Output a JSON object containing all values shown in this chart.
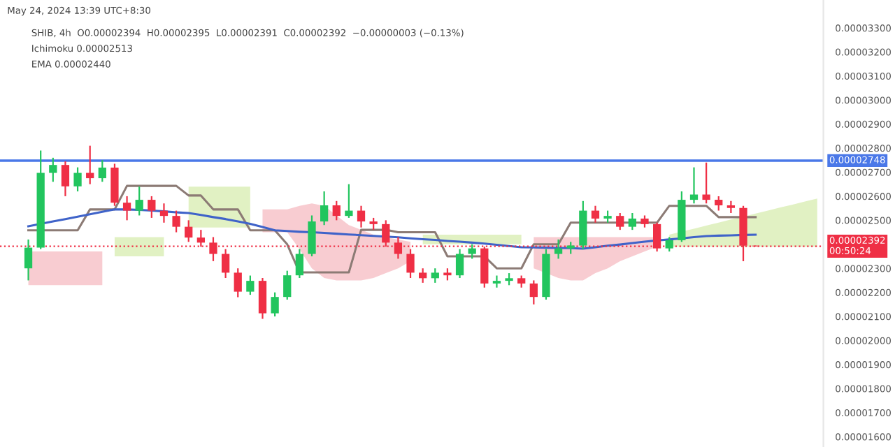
{
  "chart_data": {
    "type": "candlestick",
    "annotations": [
      "May 24, 2024 13:39 UTC+8:30",
      "SHIB, 4h  O0.00002394  H0.00002395  L0.00002391  C0.00002392  −0.00000003 (−0.13%)",
      "Ichimoku 0.00002513",
      "EMA 0.00002440"
    ],
    "categories": [
      null,
      null,
      null,
      null,
      null,
      null,
      null,
      null,
      null,
      null,
      null,
      null,
      null,
      null,
      null,
      null,
      null,
      null,
      null,
      null,
      null,
      null,
      null,
      null,
      null,
      null,
      null,
      null,
      null,
      null,
      null,
      null,
      null,
      null,
      null,
      null,
      null,
      null,
      null,
      null,
      null,
      null,
      null,
      null,
      null,
      null,
      null,
      null,
      null,
      null,
      null,
      null,
      null,
      null,
      null,
      null,
      null,
      null,
      null,
      null,
      null,
      null,
      null,
      null,
      null
    ],
    "colors": [
      "#22c55e",
      "#22c55e",
      "#22c55e",
      "#ef2f45",
      "#22c55e",
      "#ef2f45",
      "#22c55e",
      "#ef2f45",
      "#ef2f45",
      "#22c55e",
      "#ef2f45",
      "#ef2f45",
      "#ef2f45",
      "#ef2f45",
      "#ef2f45",
      "#ef2f45",
      "#ef2f45",
      "#ef2f45",
      "#22c55e",
      "#ef2f45",
      "#22c55e",
      "#22c55e",
      "#22c55e",
      "#22c55e",
      "#22c55e",
      "#ef2f45",
      "#22c55e",
      "#ef2f45",
      "#ef2f45",
      "#ef2f45",
      "#ef2f45",
      "#ef2f45",
      "#ef2f45",
      "#22c55e",
      "#ef2f45",
      "#22c55e",
      "#22c55e",
      "#ef2f45",
      "#22c55e",
      "#22c55e",
      "#ef2f45",
      "#ef2f45",
      "#22c55e",
      "#22c55e",
      "#22c55e",
      "#22c55e",
      "#ef2f45",
      "#22c55e",
      "#ef2f45",
      "#22c55e",
      "#ef2f45",
      "#ef2f45",
      "#22c55e",
      "#22c55e",
      "#22c55e",
      "#ef2f45",
      "#ef2f45",
      "#ef2f45",
      "#ef2f45",
      "#ef2f45",
      null,
      null,
      null,
      null,
      null
    ],
    "ohlc": [
      [
        2.3e-05,
        2.42e-05,
        2.25e-05,
        2.386e-05
      ],
      [
        2.386e-05,
        2.79e-05,
        2.38e-05,
        2.697e-05
      ],
      [
        2.697e-05,
        2.76e-05,
        2.66e-05,
        2.73e-05
      ],
      [
        2.73e-05,
        2.745e-05,
        2.6e-05,
        2.641e-05
      ],
      [
        2.641e-05,
        2.72e-05,
        2.62e-05,
        2.697e-05
      ],
      [
        2.697e-05,
        2.81e-05,
        2.65e-05,
        2.675e-05
      ],
      [
        2.675e-05,
        2.75e-05,
        2.66e-05,
        2.719e-05
      ],
      [
        2.719e-05,
        2.735e-05,
        2.56e-05,
        2.573e-05
      ],
      [
        2.573e-05,
        2.6e-05,
        2.5e-05,
        2.54e-05
      ],
      [
        2.54e-05,
        2.64e-05,
        2.52e-05,
        2.585e-05
      ],
      [
        2.585e-05,
        2.6e-05,
        2.51e-05,
        2.54e-05
      ],
      [
        2.54e-05,
        2.57e-05,
        2.49e-05,
        2.518e-05
      ],
      [
        2.518e-05,
        2.54e-05,
        2.45e-05,
        2.473e-05
      ],
      [
        2.473e-05,
        2.5e-05,
        2.41e-05,
        2.428e-05
      ],
      [
        2.428e-05,
        2.46e-05,
        2.39e-05,
        2.407e-05
      ],
      [
        2.407e-05,
        2.43e-05,
        2.33e-05,
        2.36e-05
      ],
      [
        2.36e-05,
        2.38e-05,
        2.26e-05,
        2.282e-05
      ],
      [
        2.282e-05,
        2.3e-05,
        2.18e-05,
        2.203e-05
      ],
      [
        2.203e-05,
        2.27e-05,
        2.19e-05,
        2.248e-05
      ],
      [
        2.248e-05,
        2.26e-05,
        2.09e-05,
        2.113e-05
      ],
      [
        2.113e-05,
        2.2e-05,
        2.1e-05,
        2.181e-05
      ],
      [
        2.181e-05,
        2.29e-05,
        2.17e-05,
        2.271e-05
      ],
      [
        2.271e-05,
        2.38e-05,
        2.26e-05,
        2.36e-05
      ],
      [
        2.36e-05,
        2.52e-05,
        2.35e-05,
        2.495e-05
      ],
      [
        2.495e-05,
        2.62e-05,
        2.48e-05,
        2.562e-05
      ],
      [
        2.562e-05,
        2.58e-05,
        2.5e-05,
        2.518e-05
      ],
      [
        2.518e-05,
        2.65e-05,
        2.51e-05,
        2.54e-05
      ],
      [
        2.54e-05,
        2.56e-05,
        2.47e-05,
        2.495e-05
      ],
      [
        2.495e-05,
        2.51e-05,
        2.46e-05,
        2.484e-05
      ],
      [
        2.484e-05,
        2.5e-05,
        2.39e-05,
        2.407e-05
      ],
      [
        2.407e-05,
        2.43e-05,
        2.34e-05,
        2.36e-05
      ],
      [
        2.36e-05,
        2.38e-05,
        2.26e-05,
        2.282e-05
      ],
      [
        2.282e-05,
        2.3e-05,
        2.24e-05,
        2.259e-05
      ],
      [
        2.259e-05,
        2.3e-05,
        2.24e-05,
        2.282e-05
      ],
      [
        2.282e-05,
        2.3e-05,
        2.25e-05,
        2.271e-05
      ],
      [
        2.271e-05,
        2.38e-05,
        2.26e-05,
        2.36e-05
      ],
      [
        2.36e-05,
        2.4e-05,
        2.34e-05,
        2.383e-05
      ],
      [
        2.383e-05,
        2.39e-05,
        2.22e-05,
        2.237e-05
      ],
      [
        2.237e-05,
        2.27e-05,
        2.22e-05,
        2.248e-05
      ],
      [
        2.248e-05,
        2.28e-05,
        2.23e-05,
        2.259e-05
      ],
      [
        2.259e-05,
        2.27e-05,
        2.22e-05,
        2.237e-05
      ],
      [
        2.237e-05,
        2.25e-05,
        2.15e-05,
        2.181e-05
      ],
      [
        2.181e-05,
        2.38e-05,
        2.17e-05,
        2.36e-05
      ],
      [
        2.36e-05,
        2.42e-05,
        2.34e-05,
        2.383e-05
      ],
      [
        2.383e-05,
        2.41e-05,
        2.36e-05,
        2.395e-05
      ],
      [
        2.395e-05,
        2.58e-05,
        2.38e-05,
        2.54e-05
      ],
      [
        2.54e-05,
        2.56e-05,
        2.49e-05,
        2.507e-05
      ],
      [
        2.507e-05,
        2.54e-05,
        2.49e-05,
        2.518e-05
      ],
      [
        2.518e-05,
        2.53e-05,
        2.46e-05,
        2.473e-05
      ],
      [
        2.473e-05,
        2.53e-05,
        2.46e-05,
        2.507e-05
      ],
      [
        2.507e-05,
        2.52e-05,
        2.47e-05,
        2.484e-05
      ],
      [
        2.484e-05,
        2.49e-05,
        2.37e-05,
        2.383e-05
      ],
      [
        2.383e-05,
        2.43e-05,
        2.37e-05,
        2.417e-05
      ],
      [
        2.417e-05,
        2.62e-05,
        2.41e-05,
        2.585e-05
      ],
      [
        2.585e-05,
        2.72e-05,
        2.57e-05,
        2.607e-05
      ],
      [
        2.607e-05,
        2.74e-05,
        2.57e-05,
        2.585e-05
      ],
      [
        2.585e-05,
        2.6e-05,
        2.54e-05,
        2.562e-05
      ],
      [
        2.562e-05,
        2.58e-05,
        2.53e-05,
        2.551e-05
      ],
      [
        2.551e-05,
        2.56e-05,
        2.33e-05,
        2.394e-05
      ],
      [
        2.394e-05,
        2.395e-05,
        2.391e-05,
        2.392e-05
      ],
      null,
      null,
      null,
      null,
      null
    ],
    "series": [
      {
        "type": "area",
        "color": "#dcefb8",
        "values": [
          null,
          null,
          null,
          null,
          null,
          null,
          null,
          null,
          null,
          null,
          null,
          null,
          null,
          null,
          null,
          null,
          null,
          null,
          null,
          null,
          null,
          null,
          null,
          null,
          null,
          null,
          null,
          null,
          null,
          null,
          null,
          null,
          null,
          null,
          null,
          null,
          null,
          null,
          null,
          null,
          null,
          null,
          null,
          null,
          null,
          null,
          null,
          null,
          null,
          null,
          null,
          null,
          null,
          null,
          null,
          null,
          null,
          null,
          null,
          null,
          null,
          null,
          null,
          null,
          null
        ],
        "upper": [
          null,
          null,
          null,
          null,
          null,
          null,
          null,
          2.43e-05,
          2.43e-05,
          2.43e-05,
          2.43e-05,
          2.43e-05,
          null,
          2.64e-05,
          2.64e-05,
          2.64e-05,
          2.64e-05,
          2.64e-05,
          2.64e-05,
          null,
          null,
          null,
          null,
          null,
          null,
          null,
          null,
          null,
          null,
          null,
          null,
          null,
          2.44e-05,
          2.44e-05,
          2.44e-05,
          2.44e-05,
          2.44e-05,
          2.44e-05,
          2.44e-05,
          2.44e-05,
          2.44e-05,
          null,
          null,
          null,
          null,
          null,
          null,
          null,
          null,
          null,
          null,
          null,
          2.44e-05,
          2.453e-05,
          2.465e-05,
          2.478e-05,
          2.49e-05,
          2.503e-05,
          2.515e-05,
          2.528e-05,
          2.54e-05,
          2.553e-05,
          2.565e-05,
          2.578e-05,
          2.59e-05
        ],
        "lower": [
          null,
          null,
          null,
          null,
          null,
          null,
          null,
          2.35e-05,
          2.35e-05,
          2.35e-05,
          2.35e-05,
          2.35e-05,
          null,
          2.47e-05,
          2.47e-05,
          2.47e-05,
          2.47e-05,
          2.47e-05,
          2.47e-05,
          null,
          null,
          null,
          null,
          null,
          null,
          null,
          null,
          null,
          null,
          null,
          null,
          null,
          2.4e-05,
          2.4e-05,
          2.4e-05,
          2.4e-05,
          2.4e-05,
          2.4e-05,
          2.4e-05,
          2.4e-05,
          2.4e-05,
          null,
          null,
          null,
          null,
          null,
          null,
          null,
          null,
          null,
          null,
          null,
          2.39e-05,
          2.39e-05,
          2.39e-05,
          2.39e-05,
          2.39e-05,
          2.39e-05,
          2.39e-05,
          2.39e-05,
          2.39e-05,
          2.39e-05,
          2.39e-05,
          2.39e-05,
          2.39e-05
        ]
      },
      {
        "type": "area",
        "color": "#f7c3c9",
        "values": [
          null,
          null,
          null,
          null,
          null,
          null,
          null,
          null,
          null,
          null,
          null,
          null,
          null,
          null,
          null,
          null,
          null,
          null,
          null,
          null,
          null,
          null,
          null,
          null,
          null,
          null,
          null,
          null,
          null,
          null,
          null,
          null,
          null,
          null,
          null,
          null,
          null,
          null,
          null,
          null,
          null,
          null,
          null,
          null,
          null,
          null,
          null,
          null,
          null,
          null,
          null,
          null,
          null,
          null,
          null,
          null,
          null,
          null,
          null,
          null,
          null,
          null,
          null,
          null,
          null
        ],
        "upper": [
          2.37e-05,
          2.37e-05,
          2.37e-05,
          2.37e-05,
          2.37e-05,
          2.37e-05,
          2.37e-05,
          null,
          null,
          null,
          null,
          null,
          null,
          null,
          null,
          null,
          null,
          null,
          null,
          2.545e-05,
          2.545e-05,
          2.545e-05,
          2.56e-05,
          2.57e-05,
          2.56e-05,
          2.52e-05,
          2.48e-05,
          2.46e-05,
          2.44e-05,
          2.43e-05,
          2.42e-05,
          2.41e-05,
          null,
          null,
          null,
          null,
          null,
          null,
          null,
          null,
          null,
          2.43e-05,
          2.43e-05,
          2.43e-05,
          2.43e-05,
          2.43e-05,
          2.43e-05,
          2.43e-05,
          2.43e-05,
          2.43e-05,
          2.43e-05,
          2.43e-05,
          null,
          null,
          null,
          null,
          null,
          null,
          null,
          null,
          null,
          null,
          null,
          null,
          null
        ],
        "lower": [
          2.23e-05,
          2.23e-05,
          2.23e-05,
          2.23e-05,
          2.23e-05,
          2.23e-05,
          2.23e-05,
          null,
          null,
          null,
          null,
          null,
          null,
          null,
          null,
          null,
          null,
          null,
          null,
          2.45e-05,
          2.45e-05,
          2.45e-05,
          2.38e-05,
          2.3e-05,
          2.26e-05,
          2.25e-05,
          2.25e-05,
          2.25e-05,
          2.26e-05,
          2.28e-05,
          2.3e-05,
          2.33e-05,
          null,
          null,
          null,
          null,
          null,
          null,
          null,
          null,
          null,
          2.3e-05,
          2.28e-05,
          2.26e-05,
          2.25e-05,
          2.25e-05,
          2.28e-05,
          2.3e-05,
          2.33e-05,
          2.35e-05,
          2.37e-05,
          2.39e-05,
          null,
          null,
          null,
          null,
          null,
          null,
          null,
          null,
          null,
          null,
          null,
          null,
          null
        ]
      },
      {
        "type": "line",
        "color": "#8c7b75",
        "values": [
          2.458e-05,
          2.458e-05,
          2.458e-05,
          2.458e-05,
          2.458e-05,
          2.545e-05,
          2.545e-05,
          2.545e-05,
          2.643e-05,
          2.643e-05,
          2.643e-05,
          2.643e-05,
          2.643e-05,
          2.603e-05,
          2.603e-05,
          2.545e-05,
          2.545e-05,
          2.545e-05,
          2.458e-05,
          2.458e-05,
          2.458e-05,
          2.4e-05,
          2.283e-05,
          2.283e-05,
          2.283e-05,
          2.283e-05,
          2.283e-05,
          2.46e-05,
          2.46e-05,
          2.46e-05,
          2.45e-05,
          2.45e-05,
          2.45e-05,
          2.45e-05,
          2.35e-05,
          2.35e-05,
          2.35e-05,
          2.35e-05,
          2.3e-05,
          2.3e-05,
          2.3e-05,
          2.4e-05,
          2.4e-05,
          2.4e-05,
          2.49e-05,
          2.49e-05,
          2.49e-05,
          2.49e-05,
          2.49e-05,
          2.49e-05,
          2.49e-05,
          2.49e-05,
          2.56e-05,
          2.56e-05,
          2.56e-05,
          2.56e-05,
          2.513e-05,
          2.513e-05,
          2.513e-05,
          2.513e-05,
          null,
          null,
          null,
          null,
          null
        ]
      },
      {
        "type": "line",
        "color": "#3f63c9",
        "values": [
          2.475e-05,
          2.485e-05,
          2.495e-05,
          2.505e-05,
          2.515e-05,
          2.525e-05,
          2.535e-05,
          2.545e-05,
          2.545e-05,
          2.543e-05,
          2.54e-05,
          2.537e-05,
          2.533e-05,
          2.53e-05,
          2.522e-05,
          2.513e-05,
          2.505e-05,
          2.495e-05,
          2.485e-05,
          2.472e-05,
          2.458e-05,
          2.455e-05,
          2.452e-05,
          2.45e-05,
          2.447e-05,
          2.444e-05,
          2.441e-05,
          2.438e-05,
          2.435e-05,
          2.432e-05,
          2.429e-05,
          2.425e-05,
          2.421e-05,
          2.418e-05,
          2.414e-05,
          2.411e-05,
          2.407e-05,
          2.403e-05,
          2.398e-05,
          2.393e-05,
          2.388e-05,
          2.387e-05,
          2.386e-05,
          2.385e-05,
          2.384e-05,
          2.382e-05,
          2.388e-05,
          2.394e-05,
          2.399e-05,
          2.405e-05,
          2.411e-05,
          2.416e-05,
          2.42e-05,
          2.425e-05,
          2.43e-05,
          2.434e-05,
          2.436e-05,
          2.437e-05,
          2.439e-05,
          2.44e-05,
          null,
          null,
          null,
          null,
          null
        ]
      }
    ],
    "ref_lines": [
      {
        "axis": "y",
        "value": 2.748e-05,
        "label": "0.00002748",
        "color": "#4a78e8",
        "line_style": "solid"
      },
      {
        "axis": "y",
        "value": 2.392e-05,
        "label": "0.00002392\n00:50:24",
        "color": "#ef2f45",
        "line_style": "dotted"
      }
    ],
    "ylim": [
      1.557e-05,
      3.416e-05
    ],
    "yticks": [
      {
        "value": 1.6e-05,
        "label": "0.00001600"
      },
      {
        "value": 1.7e-05,
        "label": "0.00001700"
      },
      {
        "value": 1.8e-05,
        "label": "0.00001800"
      },
      {
        "value": 1.9e-05,
        "label": "0.00001900"
      },
      {
        "value": 2e-05,
        "label": "0.00002000"
      },
      {
        "value": 2.1e-05,
        "label": "0.00002100"
      },
      {
        "value": 2.2e-05,
        "label": "0.00002200"
      },
      {
        "value": 2.3e-05,
        "label": "0.00002300"
      },
      {
        "value": 2.4e-05,
        "label": null
      },
      {
        "value": 2.5e-05,
        "label": "0.00002500"
      },
      {
        "value": 2.6e-05,
        "label": "0.00002600"
      },
      {
        "value": 2.7e-05,
        "label": "0.00002700"
      },
      {
        "value": 2.8e-05,
        "label": "0.00002800"
      },
      {
        "value": 2.9e-05,
        "label": "0.00002900"
      },
      {
        "value": 3e-05,
        "label": "0.00003000"
      },
      {
        "value": 3.1e-05,
        "label": "0.00003100"
      },
      {
        "value": 3.2e-05,
        "label": "0.00003200"
      },
      {
        "value": 3.3e-05,
        "label": "0.00003300"
      }
    ],
    "tick_labels": "y",
    "grid": false,
    "legend": false
  }
}
